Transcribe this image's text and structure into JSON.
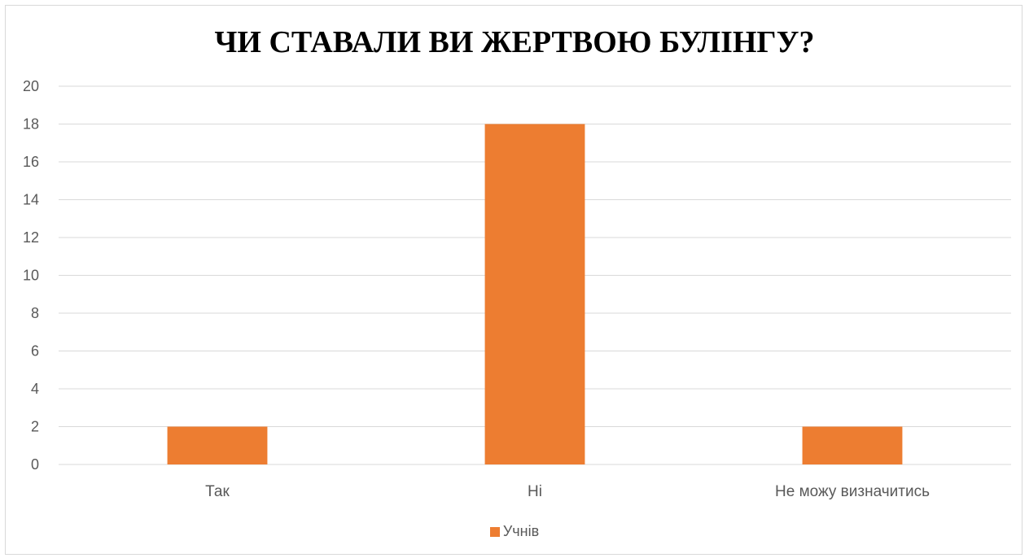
{
  "chart_data": {
    "type": "bar",
    "title": "ЧИ СТАВАЛИ ВИ ЖЕРТВОЮ БУЛІНГУ?",
    "categories": [
      "Так",
      "Ні",
      "Не можу визначитись"
    ],
    "series": [
      {
        "name": "Учнів",
        "values": [
          2,
          18,
          2
        ],
        "color": "#ED7D31"
      }
    ],
    "ylim": [
      0,
      20
    ],
    "yticks": [
      0,
      2,
      4,
      6,
      8,
      10,
      12,
      14,
      16,
      18,
      20
    ],
    "grid": true,
    "legend_position": "bottom",
    "gridline_color": "#d9d9d9"
  }
}
